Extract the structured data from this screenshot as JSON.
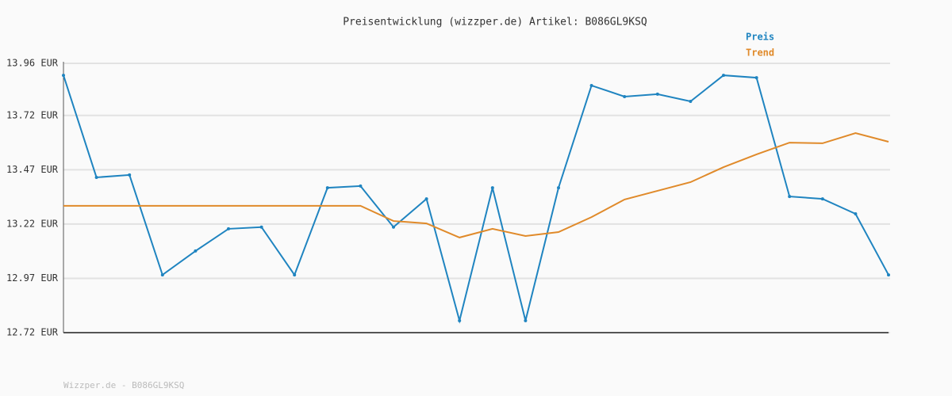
{
  "chart_data": {
    "type": "line",
    "title": "Preisentwicklung (wizzper.de) Artikel: B086GL9KSQ",
    "footer": "Wizzper.de - B086GL9KSQ",
    "categories": [
      null,
      null,
      null,
      null,
      null,
      null,
      null,
      null,
      null,
      null,
      null,
      null,
      null,
      null,
      null,
      null,
      null,
      null,
      null,
      null,
      null,
      null,
      null,
      null,
      null,
      null
    ],
    "series": [
      {
        "name": "Preis",
        "color": "#1f84c0",
        "values": [
          13.905,
          13.435,
          13.446,
          12.986,
          13.096,
          13.198,
          13.206,
          12.986,
          13.387,
          13.395,
          13.206,
          13.336,
          12.775,
          13.387,
          12.775,
          13.387,
          13.858,
          13.807,
          13.818,
          13.785,
          13.905,
          13.894,
          13.347,
          13.336,
          13.267,
          12.986
        ]
      },
      {
        "name": "Trend",
        "color": "#e08a2a",
        "values": [
          13.304,
          13.304,
          13.304,
          13.304,
          13.304,
          13.304,
          13.304,
          13.304,
          13.304,
          13.304,
          13.234,
          13.223,
          13.158,
          13.198,
          13.165,
          13.183,
          13.252,
          13.333,
          13.373,
          13.413,
          13.482,
          13.541,
          13.595,
          13.592,
          13.639,
          13.599
        ]
      }
    ],
    "ylim": [
      12.72,
      13.96
    ],
    "yticks": [
      {
        "value": 12.72,
        "label": "12.72 EUR"
      },
      {
        "value": 12.97,
        "label": "12.97 EUR"
      },
      {
        "value": 13.22,
        "label": "13.22 EUR"
      },
      {
        "value": 13.47,
        "label": "13.47 EUR"
      },
      {
        "value": 13.72,
        "label": "13.72 EUR"
      },
      {
        "value": 13.96,
        "label": "13.96 EUR"
      }
    ],
    "grid": true
  }
}
